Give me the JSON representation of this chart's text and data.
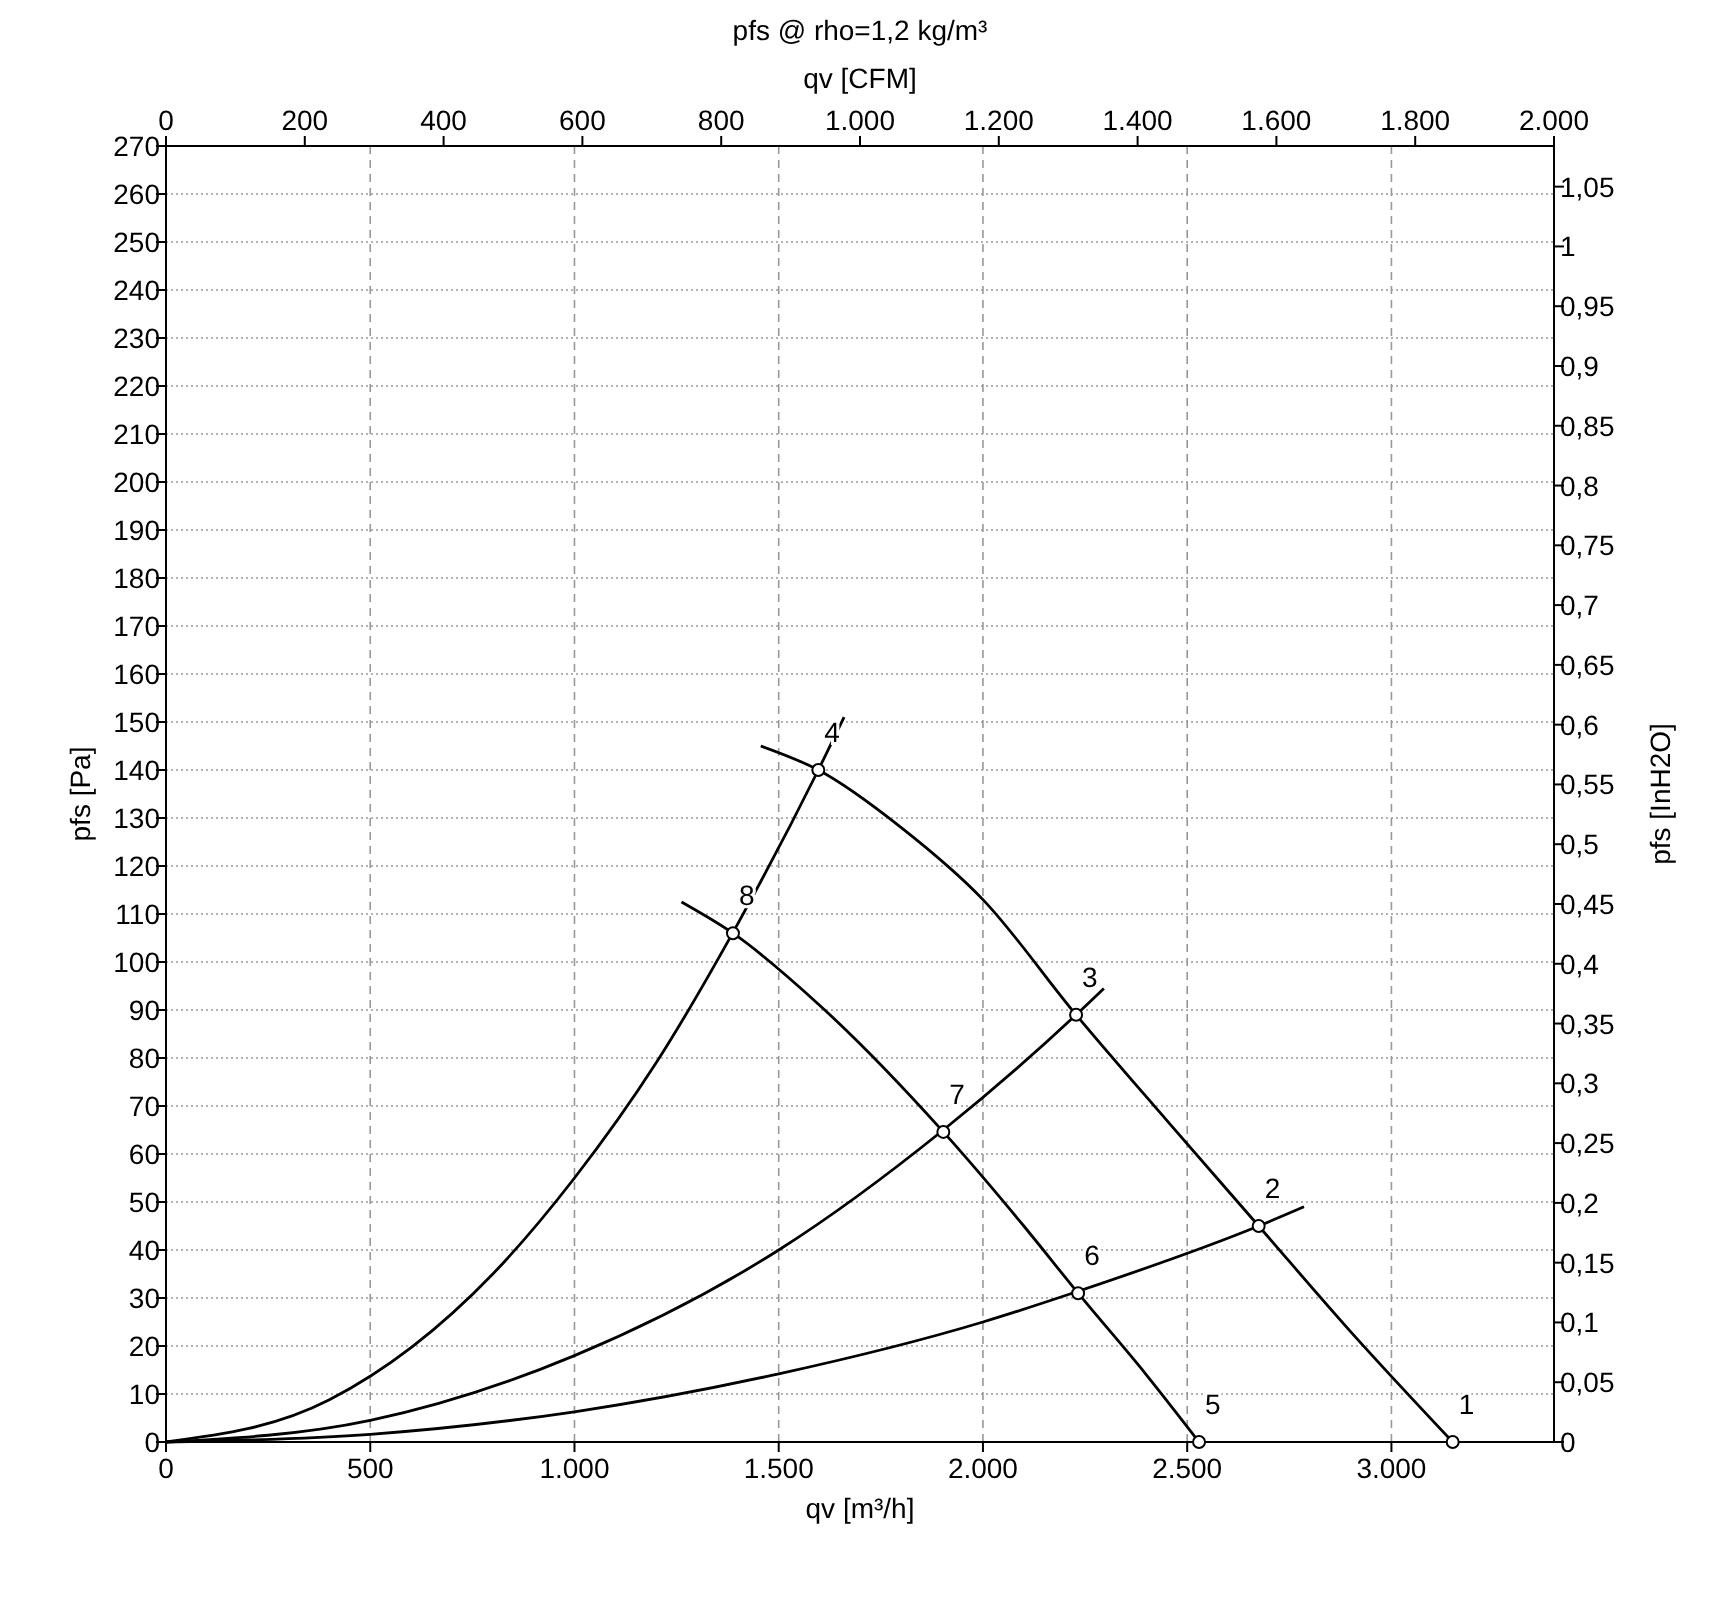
{
  "chart_data": {
    "type": "line",
    "title": "pfs @ rho=1,2 kg/m³",
    "xlabel": "qv [m³/h]",
    "x2label": "qv [CFM]",
    "ylabel": "pfs [Pa]",
    "y2label": "pfs [InH2O]",
    "xlim": [
      0,
      3398
    ],
    "xticks": [
      0,
      500,
      {
        "value": 1000,
        "label": "1.000"
      },
      {
        "value": 1500,
        "label": "1.500"
      },
      {
        "value": 2000,
        "label": "2.000"
      },
      {
        "value": 2500,
        "label": "2.500"
      },
      {
        "value": 3000,
        "label": "3.000"
      }
    ],
    "x2lim": [
      0,
      2000
    ],
    "x2ticks": [
      0,
      200,
      400,
      600,
      800,
      {
        "value": 1000,
        "label": "1.000"
      },
      {
        "value": 1200,
        "label": "1.200"
      },
      {
        "value": 1400,
        "label": "1.400"
      },
      {
        "value": 1600,
        "label": "1.600"
      },
      {
        "value": 1800,
        "label": "1.800"
      },
      {
        "value": 2000,
        "label": "2.000"
      }
    ],
    "ylim": [
      0,
      270
    ],
    "yticks": [
      0,
      10,
      20,
      30,
      40,
      50,
      60,
      70,
      80,
      90,
      100,
      110,
      120,
      130,
      140,
      150,
      160,
      170,
      180,
      190,
      200,
      210,
      220,
      230,
      240,
      250,
      260,
      270
    ],
    "y2lim": [
      0,
      1.084
    ],
    "y2ticks": [
      0,
      {
        "value": 0.05,
        "label": "0,05"
      },
      {
        "value": 0.1,
        "label": "0,1"
      },
      {
        "value": 0.15,
        "label": "0,15"
      },
      {
        "value": 0.2,
        "label": "0,2"
      },
      {
        "value": 0.25,
        "label": "0,25"
      },
      {
        "value": 0.3,
        "label": "0,3"
      },
      {
        "value": 0.35,
        "label": "0,35"
      },
      {
        "value": 0.4,
        "label": "0,4"
      },
      {
        "value": 0.45,
        "label": "0,45"
      },
      {
        "value": 0.5,
        "label": "0,5"
      },
      {
        "value": 0.55,
        "label": "0,55"
      },
      {
        "value": 0.6,
        "label": "0,6"
      },
      {
        "value": 0.65,
        "label": "0,65"
      },
      {
        "value": 0.7,
        "label": "0,7"
      },
      {
        "value": 0.75,
        "label": "0,75"
      },
      {
        "value": 0.8,
        "label": "0,8"
      },
      {
        "value": 0.85,
        "label": "0,85"
      },
      {
        "value": 0.9,
        "label": "0,9"
      },
      {
        "value": 0.95,
        "label": "0,95"
      },
      {
        "value": 1,
        "label": "1"
      },
      {
        "value": 1.05,
        "label": "1,05"
      }
    ],
    "grid": true,
    "series": [
      {
        "color": "#000000",
        "x": [
          1456,
          1597,
          1800,
          2000,
          2228,
          2450,
          2675,
          2900,
          3150
        ],
        "values": [
          145,
          140,
          128,
          113,
          89,
          67,
          45,
          23,
          0
        ]
      },
      {
        "color": "#000000",
        "x": [
          1262,
          1388,
          1600,
          1903,
          2100,
          2233,
          2400,
          2529
        ],
        "values": [
          112.5,
          106,
          91,
          64.6,
          45,
          31,
          14,
          0
        ]
      },
      {
        "color": "#000000",
        "x": [
          0,
          400,
          800,
          1000,
          1200,
          1400,
          1597,
          1660
        ],
        "values": [
          0,
          8.8,
          35,
          55,
          79,
          108,
          140,
          151
        ]
      },
      {
        "color": "#000000",
        "x": [
          0,
          500,
          1000,
          1500,
          1903,
          2228,
          2296
        ],
        "values": [
          0,
          4.5,
          18,
          40,
          65,
          89,
          94.5
        ]
      },
      {
        "color": "#000000",
        "x": [
          0,
          500,
          1000,
          1500,
          2000,
          2233,
          2675,
          2786
        ],
        "values": [
          0,
          1.6,
          6.3,
          14.2,
          25,
          31.4,
          45,
          49
        ]
      },
      {
        "type": "scatter",
        "color": "#000000",
        "marker": "circle",
        "x": [
          3150,
          2675,
          2228,
          1597,
          2529,
          2233,
          1903,
          1388
        ],
        "values": [
          0,
          45,
          89,
          140,
          0,
          31,
          64.6,
          106
        ]
      }
    ],
    "annotations": [
      {
        "text": "1",
        "x": 3150,
        "y": 0
      },
      {
        "text": "2",
        "x": 2675,
        "y": 45
      },
      {
        "text": "3",
        "x": 2228,
        "y": 89
      },
      {
        "text": "4",
        "x": 1597,
        "y": 140
      },
      {
        "text": "5",
        "x": 2529,
        "y": 0
      },
      {
        "text": "6",
        "x": 2233,
        "y": 31
      },
      {
        "text": "7",
        "x": 1903,
        "y": 64.6
      },
      {
        "text": "8",
        "x": 1388,
        "y": 106
      }
    ]
  }
}
